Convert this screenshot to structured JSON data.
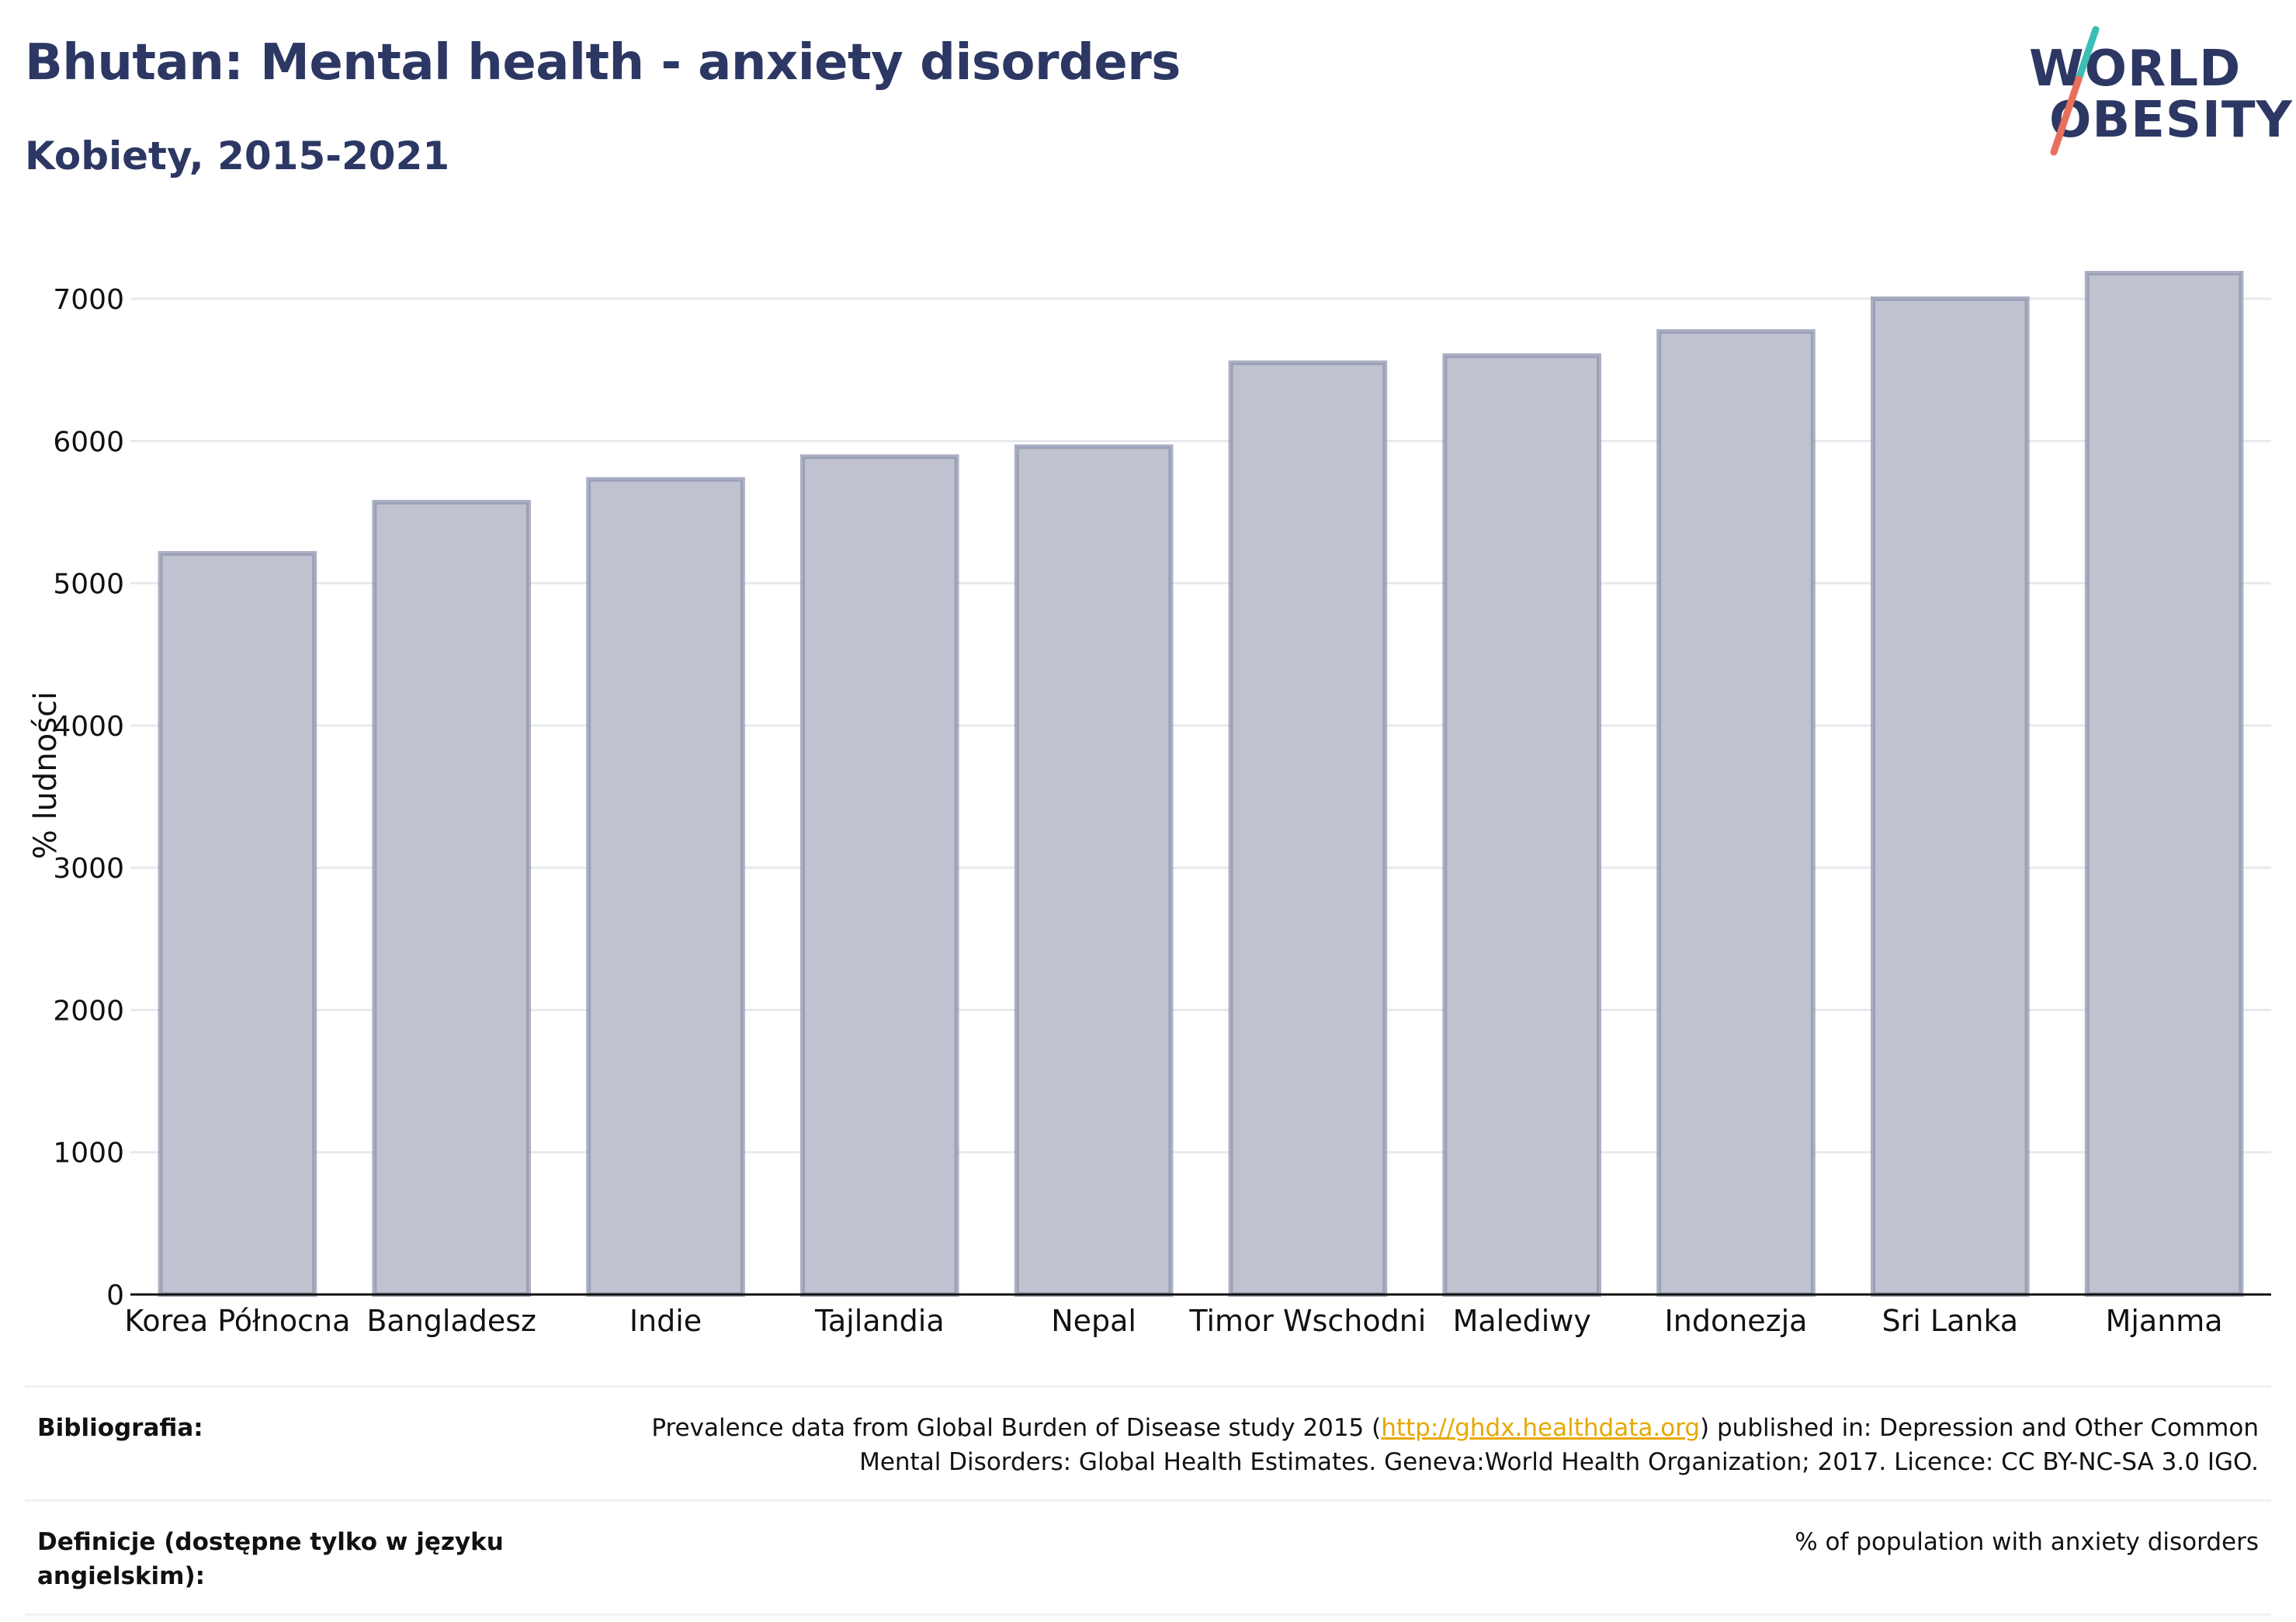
{
  "header": {
    "title": "Bhutan: Mental health - anxiety disorders",
    "subtitle": "Kobiety, 2015-2021"
  },
  "logo": {
    "line1": "WORLD",
    "line2": "OBESITY",
    "accent_colors": [
      "#3bbfb4",
      "#e8705a"
    ]
  },
  "colors": {
    "title": "#2c3763",
    "bar_fill": "#c0c3cf",
    "bar_stroke": "#8f95ae",
    "grid": "#e8e9ee",
    "axis": "#111111",
    "link": "#e6a800"
  },
  "chart_data": {
    "type": "bar",
    "title": "Bhutan: Mental health - anxiety disorders",
    "subtitle": "Kobiety, 2015-2021",
    "xlabel": "",
    "ylabel": "% ludności",
    "ylim": [
      0,
      7300
    ],
    "yticks": [
      0,
      1000,
      2000,
      3000,
      4000,
      5000,
      6000,
      7000
    ],
    "grid": true,
    "categories": [
      "Korea Północna",
      "Bangladesz",
      "Indie",
      "Tajlandia",
      "Nepal",
      "Timor Wschodni",
      "Malediwy",
      "Indonezja",
      "Sri Lanka",
      "Mjanma"
    ],
    "values": [
      5210,
      5570,
      5730,
      5890,
      5960,
      6550,
      6600,
      6770,
      7000,
      7180
    ]
  },
  "footer": {
    "bibliography_label": "Bibliografia:",
    "bibliography_pre": "Prevalence data from Global Burden of Disease study 2015 (",
    "bibliography_link": "http://ghdx.healthdata.org",
    "bibliography_post": ") published in: Depression and Other Common",
    "bibliography_line2": "Mental Disorders: Global Health Estimates. Geneva:World Health Organization; 2017. Licence: CC BY-NC-SA 3.0 IGO.",
    "definition_label": "Definicje (dostępne tylko w języku angielskim):",
    "definition_text": "% of population with anxiety disorders"
  }
}
